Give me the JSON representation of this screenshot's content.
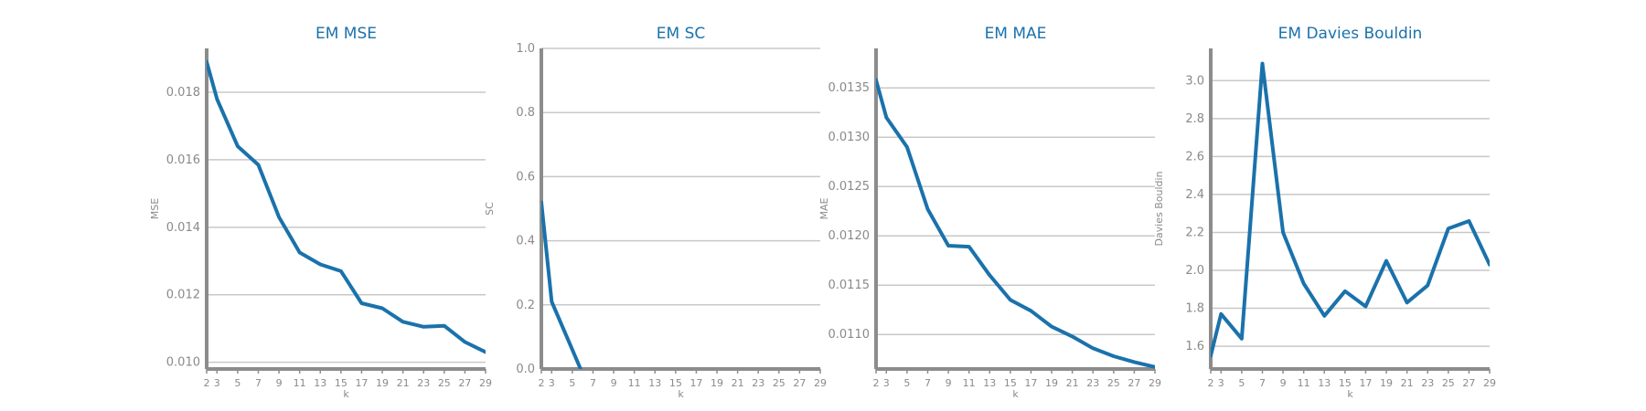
{
  "colors": {
    "line": "#1a72ab",
    "title": "#1a72ab",
    "axis": "#8c8c8c",
    "grid": "#c8c8c8",
    "text": "#8a8a8a"
  },
  "chart_data": [
    {
      "type": "line",
      "title": "EM MSE",
      "xlabel": "k",
      "ylabel": "MSE",
      "xlim": [
        2,
        29
      ],
      "ylim": [
        0.0098,
        0.0193
      ],
      "xticks": [
        2,
        3,
        5,
        7,
        9,
        11,
        13,
        15,
        17,
        19,
        21,
        23,
        25,
        27,
        29
      ],
      "yticks": [
        0.01,
        0.012,
        0.014,
        0.016,
        0.018
      ],
      "ytick_labels": [
        "0.010",
        "0.012",
        "0.014",
        "0.016",
        "0.018"
      ],
      "grid": "y",
      "x": [
        2,
        3,
        5,
        7,
        9,
        11,
        13,
        15,
        17,
        19,
        21,
        23,
        25,
        27,
        29
      ],
      "y": [
        0.0189,
        0.0178,
        0.0164,
        0.01585,
        0.0143,
        0.01325,
        0.0129,
        0.0127,
        0.01175,
        0.0116,
        0.0112,
        0.01105,
        0.01108,
        0.0106,
        0.0103
      ]
    },
    {
      "type": "line",
      "title": "EM SC",
      "xlabel": "k",
      "ylabel": "SC",
      "xlim": [
        2,
        29
      ],
      "ylim": [
        0.0,
        1.0
      ],
      "xticks": [
        2,
        3,
        5,
        7,
        9,
        11,
        13,
        15,
        17,
        19,
        21,
        23,
        25,
        27,
        29
      ],
      "yticks": [
        0.0,
        0.2,
        0.4,
        0.6,
        0.8,
        1.0
      ],
      "ytick_labels": [
        "0.0",
        "0.2",
        "0.4",
        "0.6",
        "0.8",
        "1.0"
      ],
      "grid": "y",
      "x": [
        2,
        3,
        5,
        5.8
      ],
      "y": [
        0.52,
        0.21,
        0.06,
        0.0
      ]
    },
    {
      "type": "line",
      "title": "EM MAE",
      "xlabel": "k",
      "ylabel": "MAE",
      "xlim": [
        2,
        29
      ],
      "ylim": [
        0.01065,
        0.0139
      ],
      "xticks": [
        2,
        3,
        5,
        7,
        9,
        11,
        13,
        15,
        17,
        19,
        21,
        23,
        25,
        27,
        29
      ],
      "yticks": [
        0.011,
        0.0115,
        0.012,
        0.0125,
        0.013,
        0.0135
      ],
      "ytick_labels": [
        "0.0110",
        "0.0115",
        "0.0120",
        "0.0125",
        "0.0130",
        "0.0135"
      ],
      "grid": "y",
      "x": [
        2,
        3,
        5,
        7,
        9,
        11,
        13,
        15,
        17,
        19,
        21,
        23,
        25,
        27,
        29
      ],
      "y": [
        0.01358,
        0.0132,
        0.0129,
        0.01227,
        0.0119,
        0.01189,
        0.0116,
        0.01135,
        0.01124,
        0.01108,
        0.01098,
        0.01086,
        0.01078,
        0.01072,
        0.01067
      ]
    },
    {
      "type": "line",
      "title": "EM Davies Bouldin",
      "xlabel": "k",
      "ylabel": "Davies Bouldin",
      "xlim": [
        2,
        29
      ],
      "ylim": [
        1.48,
        3.17
      ],
      "xticks": [
        2,
        3,
        5,
        7,
        9,
        11,
        13,
        15,
        17,
        19,
        21,
        23,
        25,
        27,
        29
      ],
      "yticks": [
        1.6,
        1.8,
        2.0,
        2.2,
        2.4,
        2.6,
        2.8,
        3.0
      ],
      "ytick_labels": [
        "1.6",
        "1.8",
        "2.0",
        "2.2",
        "2.4",
        "2.6",
        "2.8",
        "3.0"
      ],
      "grid": "y",
      "x": [
        2,
        3,
        5,
        7,
        9,
        11,
        13,
        15,
        17,
        19,
        21,
        23,
        25,
        27,
        29
      ],
      "y": [
        1.55,
        1.77,
        1.64,
        3.09,
        2.2,
        1.93,
        1.76,
        1.89,
        1.81,
        2.05,
        1.83,
        1.92,
        2.22,
        2.26,
        2.03
      ]
    }
  ]
}
